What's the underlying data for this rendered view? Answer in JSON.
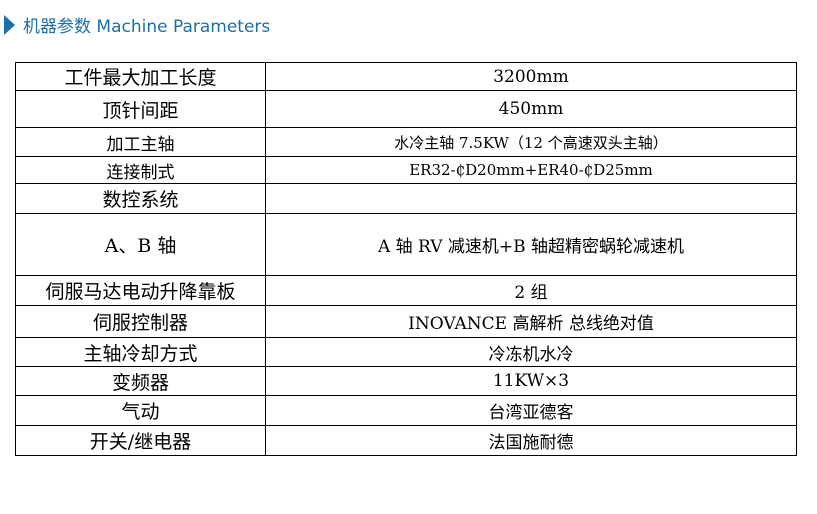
{
  "header": {
    "title": "机器参数 Machine Parameters",
    "accent": "#1d6fa8"
  },
  "rows": [
    {
      "label": "工件最大加工长度",
      "value": "3200mm"
    },
    {
      "label": "顶针间距",
      "value": "450mm"
    },
    {
      "label": "加工主轴",
      "value": "水冷主轴 7.5KW（12 个高速双头主轴）"
    },
    {
      "label": "连接制式",
      "value": "ER32-₵D20mm+ER40-₵D25mm"
    },
    {
      "label": "数控系统",
      "value": ""
    },
    {
      "label": "A、B 轴",
      "value": "A 轴 RV 减速机+B 轴超精密蜗轮减速机"
    },
    {
      "label": "伺服马达电动升降靠板",
      "value": "2 组"
    },
    {
      "label": "伺服控制器",
      "value": "INOVANCE 高解析 总线绝对值"
    },
    {
      "label": "主轴冷却方式",
      "value": "冷冻机水冷"
    },
    {
      "label": "变频器",
      "value": "11KW×3"
    },
    {
      "label": "气动",
      "value": "台湾亚德客"
    },
    {
      "label": "开关/继电器",
      "value": "法国施耐德"
    }
  ]
}
